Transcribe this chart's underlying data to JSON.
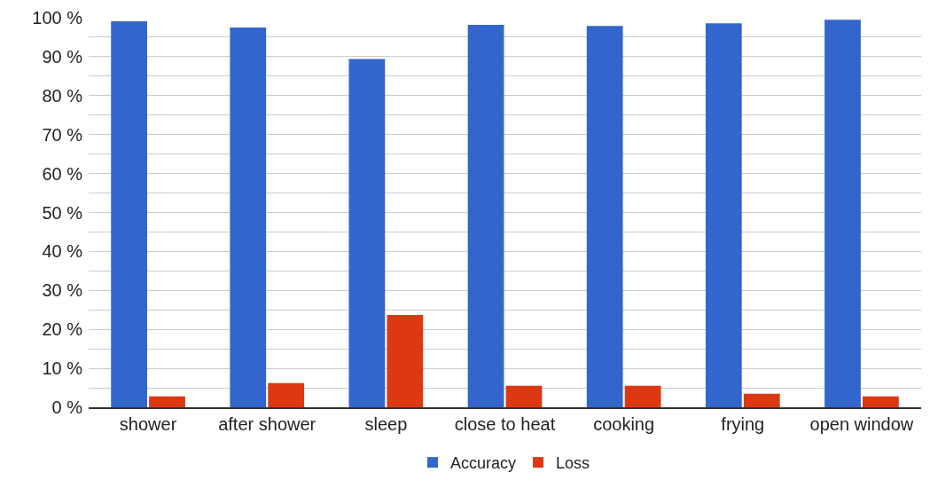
{
  "chart_data": {
    "type": "bar",
    "categories": [
      "shower",
      "after shower",
      "sleep",
      "close to heat",
      "cooking",
      "frying",
      "open window"
    ],
    "series": [
      {
        "name": "Accuracy",
        "color": "#3366cc",
        "values": [
          99.1,
          97.5,
          89.4,
          98.2,
          97.9,
          98.6,
          99.5
        ]
      },
      {
        "name": "Loss",
        "color": "#dc3912",
        "values": [
          2.8,
          6.2,
          23.7,
          5.5,
          5.5,
          3.5,
          2.8
        ]
      }
    ],
    "ylim": [
      0,
      100
    ],
    "yticks": [
      {
        "value": 0,
        "label": "0 %"
      },
      {
        "value": 5,
        "label": null
      },
      {
        "value": 10,
        "label": "10 %"
      },
      {
        "value": 15,
        "label": null
      },
      {
        "value": 20,
        "label": "20 %"
      },
      {
        "value": 25,
        "label": null
      },
      {
        "value": 30,
        "label": "30 %"
      },
      {
        "value": 35,
        "label": null
      },
      {
        "value": 40,
        "label": "40 %"
      },
      {
        "value": 45,
        "label": null
      },
      {
        "value": 50,
        "label": "50 %"
      },
      {
        "value": 55,
        "label": null
      },
      {
        "value": 60,
        "label": "60 %"
      },
      {
        "value": 65,
        "label": null
      },
      {
        "value": 70,
        "label": "70 %"
      },
      {
        "value": 75,
        "label": null
      },
      {
        "value": 80,
        "label": "80 %"
      },
      {
        "value": 85,
        "label": null
      },
      {
        "value": 90,
        "label": "90 %"
      },
      {
        "value": 95,
        "label": null
      },
      {
        "value": 100,
        "label": "100 %"
      }
    ],
    "grid": true,
    "legend": "bottom"
  }
}
